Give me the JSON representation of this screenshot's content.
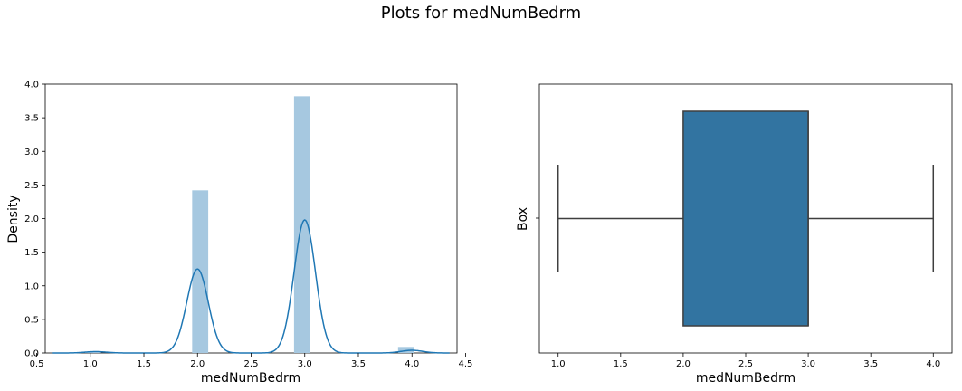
{
  "suptitle": "Plots for medNumBedrm",
  "chart_data": [
    {
      "type": "histogram",
      "xlabel": "medNumBedrm",
      "ylabel": "Density",
      "xlim": [
        0.58,
        4.42
      ],
      "ylim": [
        0,
        4.0
      ],
      "xticks": [
        "0.5",
        "1.0",
        "1.5",
        "2.0",
        "2.5",
        "3.0",
        "3.5",
        "4.0",
        "4.5"
      ],
      "xtick_values": [
        0.5,
        1.0,
        1.5,
        2.0,
        2.5,
        3.0,
        3.5,
        4.0,
        4.5
      ],
      "yticks": [
        "0.0",
        "0.5",
        "1.0",
        "1.5",
        "2.0",
        "2.5",
        "3.0",
        "3.5",
        "4.0"
      ],
      "ytick_values": [
        0,
        0.5,
        1.0,
        1.5,
        2.0,
        2.5,
        3.0,
        3.5,
        4.0
      ],
      "bars": [
        {
          "x0": 0.95,
          "x1": 1.1,
          "value": 0.01
        },
        {
          "x0": 1.95,
          "x1": 2.1,
          "value": 2.42
        },
        {
          "x0": 2.9,
          "x1": 3.05,
          "value": 3.82
        },
        {
          "x0": 3.87,
          "x1": 4.02,
          "value": 0.09
        }
      ],
      "bar_color": "#a6c8e0",
      "kde": {
        "color": "#1f77b4",
        "components": [
          {
            "mu": 1.05,
            "sigma": 0.1,
            "peak": 0.02
          },
          {
            "mu": 2.0,
            "sigma": 0.1,
            "peak": 1.25
          },
          {
            "mu": 3.0,
            "sigma": 0.1,
            "peak": 1.98
          },
          {
            "mu": 4.0,
            "sigma": 0.1,
            "peak": 0.04
          }
        ],
        "range": [
          0.65,
          4.35
        ]
      }
    },
    {
      "type": "box",
      "xlabel": "medNumBedrm",
      "ylabel": "Box",
      "xlim": [
        0.85,
        4.15
      ],
      "xticks": [
        "1.0",
        "1.5",
        "2.0",
        "2.5",
        "3.0",
        "3.5",
        "4.0"
      ],
      "xtick_values": [
        1.0,
        1.5,
        2.0,
        2.5,
        3.0,
        3.5,
        4.0
      ],
      "min": 1.0,
      "q1": 2.0,
      "median": 3.0,
      "q3": 3.0,
      "max": 4.0,
      "box_color": "#3274a1",
      "line_color": "#3f3f3f"
    }
  ]
}
